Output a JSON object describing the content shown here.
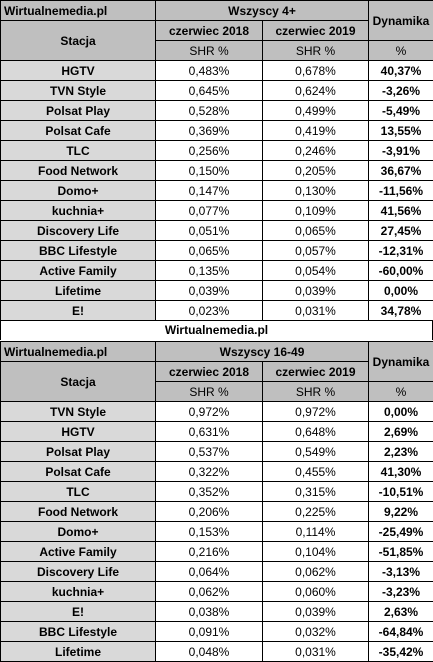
{
  "tables": [
    {
      "source": "Wirtualnemedia.pl",
      "group": "Wszyscy 4+",
      "station_header": "Stacja",
      "dynamics_header": "Dynamika",
      "period1": "czerwiec 2018",
      "period2": "czerwiec 2019",
      "metric1": "SHR %",
      "metric2": "SHR %",
      "percent_label": "%",
      "rows": [
        {
          "station": "HGTV",
          "v2018": "0,483%",
          "v2019": "0,678%",
          "dyn": "40,37%"
        },
        {
          "station": "TVN Style",
          "v2018": "0,645%",
          "v2019": "0,624%",
          "dyn": "-3,26%"
        },
        {
          "station": "Polsat Play",
          "v2018": "0,528%",
          "v2019": "0,499%",
          "dyn": "-5,49%"
        },
        {
          "station": "Polsat Cafe",
          "v2018": "0,369%",
          "v2019": "0,419%",
          "dyn": "13,55%"
        },
        {
          "station": "TLC",
          "v2018": "0,256%",
          "v2019": "0,246%",
          "dyn": "-3,91%"
        },
        {
          "station": "Food Network",
          "v2018": "0,150%",
          "v2019": "0,205%",
          "dyn": "36,67%"
        },
        {
          "station": "Domo+",
          "v2018": "0,147%",
          "v2019": "0,130%",
          "dyn": "-11,56%"
        },
        {
          "station": "kuchnia+",
          "v2018": "0,077%",
          "v2019": "0,109%",
          "dyn": "41,56%"
        },
        {
          "station": "Discovery Life",
          "v2018": "0,051%",
          "v2019": "0,065%",
          "dyn": "27,45%"
        },
        {
          "station": "BBC Lifestyle",
          "v2018": "0,065%",
          "v2019": "0,057%",
          "dyn": "-12,31%"
        },
        {
          "station": "Active Family",
          "v2018": "0,135%",
          "v2019": "0,054%",
          "dyn": "-60,00%"
        },
        {
          "station": "Lifetime",
          "v2018": "0,039%",
          "v2019": "0,039%",
          "dyn": "0,00%"
        },
        {
          "station": "E!",
          "v2018": "0,023%",
          "v2019": "0,031%",
          "dyn": "34,78%"
        }
      ]
    },
    {
      "source": "Wirtualnemedia.pl",
      "group": "Wszyscy 16-49",
      "station_header": "Stacja",
      "dynamics_header": "Dynamika",
      "period1": "czerwiec 2018",
      "period2": "czerwiec 2019",
      "metric1": "SHR %",
      "metric2": "SHR %",
      "percent_label": "%",
      "rows": [
        {
          "station": "TVN Style",
          "v2018": "0,972%",
          "v2019": "0,972%",
          "dyn": "0,00%"
        },
        {
          "station": "HGTV",
          "v2018": "0,631%",
          "v2019": "0,648%",
          "dyn": "2,69%"
        },
        {
          "station": "Polsat Play",
          "v2018": "0,537%",
          "v2019": "0,549%",
          "dyn": "2,23%"
        },
        {
          "station": "Polsat Cafe",
          "v2018": "0,322%",
          "v2019": "0,455%",
          "dyn": "41,30%"
        },
        {
          "station": "TLC",
          "v2018": "0,352%",
          "v2019": "0,315%",
          "dyn": "-10,51%"
        },
        {
          "station": "Food Network",
          "v2018": "0,206%",
          "v2019": "0,225%",
          "dyn": "9,22%"
        },
        {
          "station": "Domo+",
          "v2018": "0,153%",
          "v2019": "0,114%",
          "dyn": "-25,49%"
        },
        {
          "station": "Active Family",
          "v2018": "0,216%",
          "v2019": "0,104%",
          "dyn": "-51,85%"
        },
        {
          "station": "Discovery Life",
          "v2018": "0,064%",
          "v2019": "0,062%",
          "dyn": "-3,13%"
        },
        {
          "station": "kuchnia+",
          "v2018": "0,062%",
          "v2019": "0,060%",
          "dyn": "-3,23%"
        },
        {
          "station": "E!",
          "v2018": "0,038%",
          "v2019": "0,039%",
          "dyn": "2,63%"
        },
        {
          "station": "BBC Lifestyle",
          "v2018": "0,091%",
          "v2019": "0,032%",
          "dyn": "-64,84%"
        },
        {
          "station": "Lifetime",
          "v2018": "0,048%",
          "v2019": "0,031%",
          "dyn": "-35,42%"
        }
      ]
    }
  ],
  "middle_caption": "Wirtualnemedia.pl",
  "colors": {
    "header_bg": "#bfbfbf",
    "station_bg": "#d9d9d9",
    "value_bg": "#ffffff",
    "border": "#000000"
  }
}
